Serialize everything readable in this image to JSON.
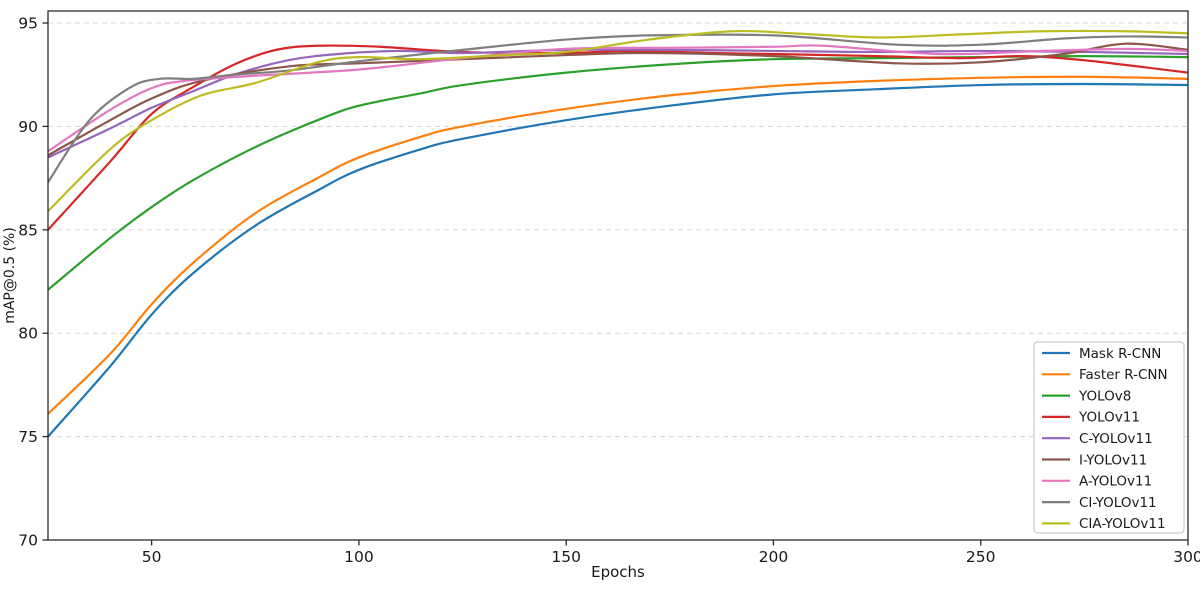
{
  "chart_data": {
    "type": "line",
    "title": "",
    "xlabel": "Epochs",
    "ylabel": "mAP@0.5 (%)",
    "xlim": [
      25,
      300
    ],
    "ylim": [
      70,
      95.6
    ],
    "xticks": [
      50,
      100,
      150,
      200,
      250,
      300
    ],
    "yticks": [
      70,
      75,
      80,
      85,
      90,
      95
    ],
    "grid": "horizontal dashed, light gray",
    "legend_position": "lower right",
    "axis_color": "#2b2b2b",
    "grid_color": "#d7d7d7",
    "text_color": "#1a1a1a",
    "series": [
      {
        "name": "Mask R-CNN",
        "color": "#1f77b4",
        "x": [
          25,
          40,
          50,
          60,
          75,
          90,
          100,
          115,
          125,
          150,
          175,
          200,
          225,
          250,
          275,
          300
        ],
        "y": [
          75.0,
          78.4,
          80.9,
          82.9,
          85.2,
          86.9,
          87.9,
          88.9,
          89.4,
          90.3,
          91.0,
          91.55,
          91.8,
          92.0,
          92.05,
          92.0
        ]
      },
      {
        "name": "Faster R-CNN",
        "color": "#ff7f0e",
        "x": [
          25,
          40,
          50,
          60,
          75,
          90,
          100,
          115,
          125,
          150,
          175,
          200,
          225,
          250,
          275,
          300
        ],
        "y": [
          76.1,
          79.0,
          81.4,
          83.4,
          85.8,
          87.5,
          88.5,
          89.5,
          90.0,
          90.85,
          91.5,
          91.95,
          92.2,
          92.35,
          92.4,
          92.3
        ]
      },
      {
        "name": "YOLOv8",
        "color": "#2ca02c",
        "x": [
          25,
          40,
          50,
          60,
          75,
          90,
          100,
          115,
          125,
          150,
          175,
          200,
          225,
          250,
          275,
          300
        ],
        "y": [
          82.1,
          84.6,
          86.1,
          87.4,
          89.0,
          90.3,
          91.0,
          91.6,
          92.0,
          92.6,
          93.0,
          93.25,
          93.3,
          93.35,
          93.4,
          93.35
        ]
      },
      {
        "name": "YOLOv11",
        "color": "#d62728",
        "x": [
          25,
          40,
          50,
          60,
          70,
          80,
          90,
          105,
          125,
          150,
          165,
          185,
          200,
          225,
          245,
          260,
          275,
          300
        ],
        "y": [
          85.0,
          88.3,
          90.6,
          91.9,
          93.0,
          93.7,
          93.9,
          93.85,
          93.6,
          93.55,
          93.65,
          93.55,
          93.5,
          93.4,
          93.3,
          93.4,
          93.2,
          92.6
        ]
      },
      {
        "name": "C-YOLOv11",
        "color": "#9467bd",
        "x": [
          25,
          40,
          50,
          60,
          70,
          83,
          95,
          110,
          125,
          150,
          175,
          200,
          225,
          250,
          275,
          300
        ],
        "y": [
          88.5,
          89.9,
          90.9,
          91.7,
          92.5,
          93.2,
          93.5,
          93.65,
          93.55,
          93.7,
          93.7,
          93.65,
          93.6,
          93.65,
          93.6,
          93.5
        ]
      },
      {
        "name": "I-YOLOv11",
        "color": "#8c564b",
        "x": [
          25,
          40,
          50,
          62,
          83,
          100,
          125,
          150,
          170,
          200,
          230,
          250,
          270,
          285,
          300
        ],
        "y": [
          88.6,
          90.3,
          91.35,
          92.2,
          92.9,
          93.05,
          93.25,
          93.45,
          93.55,
          93.4,
          93.05,
          93.1,
          93.5,
          94.0,
          93.7
        ]
      },
      {
        "name": "A-YOLOv11",
        "color": "#e377c2",
        "x": [
          25,
          40,
          50,
          58,
          75,
          100,
          125,
          150,
          175,
          200,
          212,
          240,
          265,
          285,
          300
        ],
        "y": [
          88.8,
          90.8,
          91.85,
          92.2,
          92.45,
          92.75,
          93.3,
          93.75,
          93.8,
          93.85,
          93.9,
          93.5,
          93.65,
          93.75,
          93.65
        ]
      },
      {
        "name": "CI-YOLOv11",
        "color": "#7f7f7f",
        "x": [
          25,
          35,
          45,
          52,
          60,
          70,
          83,
          100,
          125,
          150,
          170,
          200,
          230,
          250,
          270,
          285,
          300
        ],
        "y": [
          87.3,
          90.3,
          91.9,
          92.3,
          92.3,
          92.5,
          92.7,
          93.15,
          93.7,
          94.2,
          94.4,
          94.4,
          93.95,
          93.95,
          94.25,
          94.35,
          94.3
        ]
      },
      {
        "name": "CIA-YOLOv11",
        "color": "#bcbd22",
        "x": [
          25,
          40,
          50,
          62,
          75,
          90,
          100,
          115,
          135,
          150,
          170,
          190,
          205,
          225,
          245,
          265,
          285,
          300
        ],
        "y": [
          85.9,
          88.9,
          90.3,
          91.5,
          92.1,
          93.1,
          93.35,
          93.25,
          93.45,
          93.6,
          94.2,
          94.6,
          94.5,
          94.3,
          94.45,
          94.6,
          94.6,
          94.5
        ]
      }
    ]
  }
}
